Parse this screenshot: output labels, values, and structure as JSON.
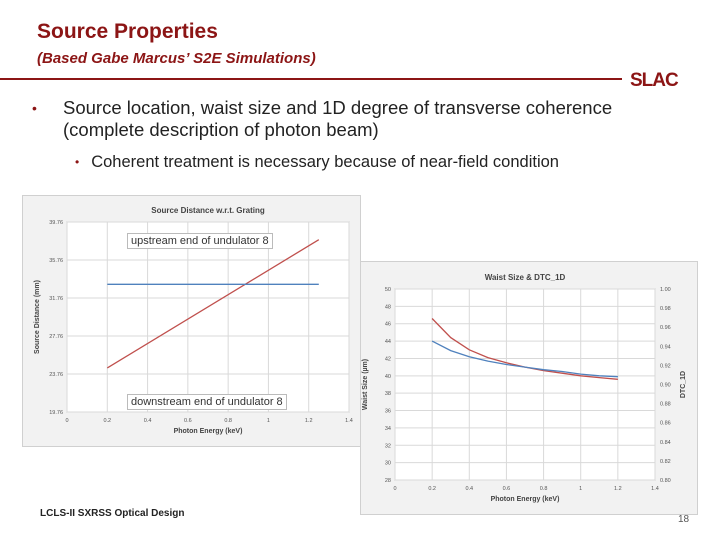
{
  "slide": {
    "title": "Source Properties",
    "subtitle": "(Based Gabe Marcus’ S2E Simulations)",
    "logo": "SLAC",
    "bullet1": "Source location, waist size and 1D degree of transverse coherence (complete description of photon beam)",
    "bullet2": "Coherent treatment is necessary because of near-field condition",
    "footer": "LCLS-II SXRSS Optical Design",
    "page_number": "18",
    "annotation_upstream": "upstream end of undulator 8",
    "annotation_downstream": "downstream end of undulator 8",
    "colors": {
      "accent": "#8c1515",
      "series_red": "#c0504d",
      "series_blue": "#4f81bd"
    }
  },
  "chart_data": [
    {
      "type": "line",
      "title": "Source Distance w.r.t. Grating",
      "xlabel": "Photon Energy (keV)",
      "ylabel": "Source Distance (mm)",
      "xlim": [
        0,
        1.4
      ],
      "ylim": [
        19.76,
        39.76
      ],
      "x_ticks": [
        "0",
        "0.2",
        "0.4",
        "0.6",
        "0.8",
        "1",
        "1.2",
        "1.4"
      ],
      "y_ticks": [
        "19.76",
        "23.76",
        "27.76",
        "31.76",
        "35.76",
        "39.76"
      ],
      "grid": true,
      "series": [
        {
          "color": "#c0504d",
          "x": [
            0.2,
            1.25
          ],
          "y": [
            24.4,
            37.9
          ]
        },
        {
          "color": "#4f81bd",
          "x": [
            0.2,
            1.25
          ],
          "y": [
            33.2,
            33.2
          ]
        }
      ]
    },
    {
      "type": "line",
      "title": "Waist Size & DTC_1D",
      "xlabel": "Photon Energy (keV)",
      "ylabel": "Waist Size (µm)",
      "y2label": "DTC_1D",
      "xlim": [
        0,
        1.4
      ],
      "ylim": [
        28,
        50
      ],
      "y2lim": [
        0.8,
        1.0
      ],
      "x_ticks": [
        "0",
        "0.2",
        "0.4",
        "0.6",
        "0.8",
        "1",
        "1.2",
        "1.4"
      ],
      "y_ticks": [
        "28",
        "30",
        "32",
        "34",
        "36",
        "38",
        "40",
        "42",
        "44",
        "46",
        "48",
        "50"
      ],
      "y2_ticks": [
        "0.80",
        "0.82",
        "0.84",
        "0.86",
        "0.88",
        "0.90",
        "0.92",
        "0.94",
        "0.96",
        "0.98",
        "1.00"
      ],
      "grid": true,
      "series": [
        {
          "color": "#c0504d",
          "axis": "left",
          "x": [
            0.2,
            0.3,
            0.4,
            0.5,
            0.6,
            0.7,
            0.8,
            0.9,
            1.0,
            1.1,
            1.2
          ],
          "y": [
            46.6,
            44.4,
            43.0,
            42.1,
            41.5,
            41.0,
            40.6,
            40.3,
            40.0,
            39.8,
            39.6
          ]
        },
        {
          "color": "#4f81bd",
          "axis": "left",
          "x": [
            0.2,
            0.3,
            0.4,
            0.5,
            0.6,
            0.7,
            0.8,
            0.9,
            1.0,
            1.1,
            1.2
          ],
          "y": [
            44.0,
            42.9,
            42.2,
            41.7,
            41.3,
            41.0,
            40.7,
            40.5,
            40.2,
            40.0,
            39.9
          ]
        }
      ]
    }
  ]
}
